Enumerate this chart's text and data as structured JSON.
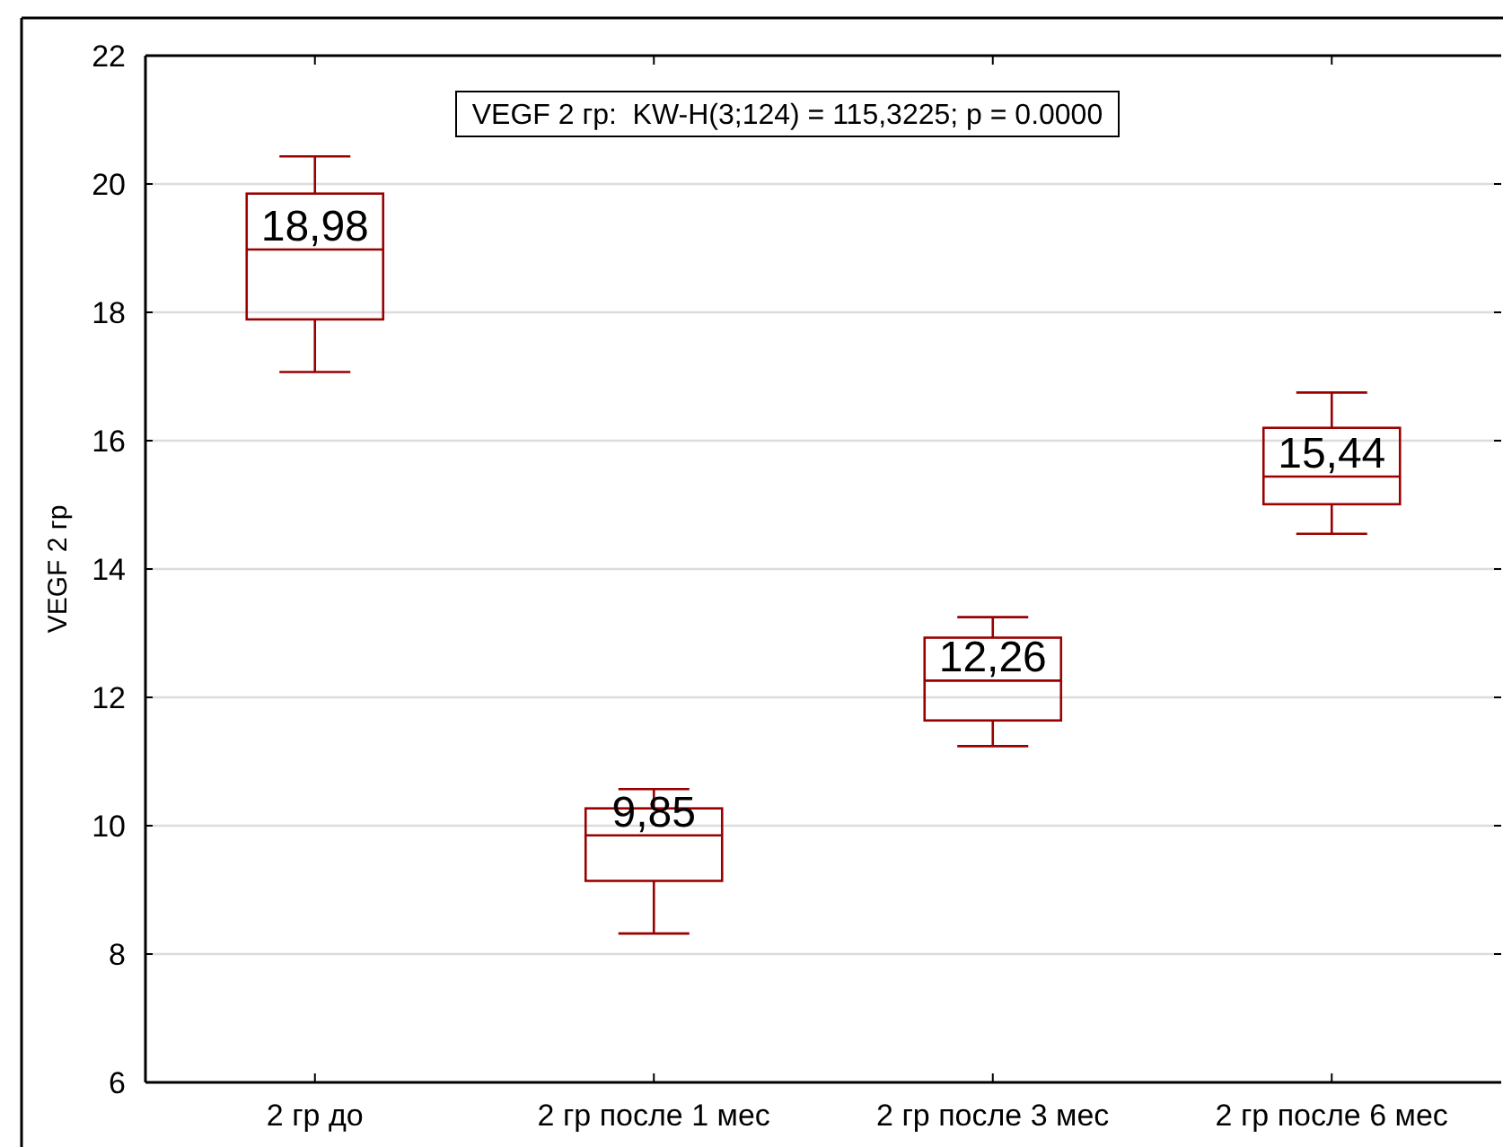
{
  "chart_data": {
    "type": "box",
    "ylabel": "VEGF 2 гр",
    "categories": [
      "2 гр до",
      "2 гр после 1 мес",
      "2 гр после 3 мес",
      "2 гр после 6 мес"
    ],
    "series": [
      {
        "color": "#990000",
        "boxes": [
          {
            "low": 17.07,
            "q1": 17.89,
            "median": 18.98,
            "q3": 19.85,
            "high": 20.43
          },
          {
            "low": 8.32,
            "q1": 9.14,
            "median": 9.85,
            "q3": 10.27,
            "high": 10.57
          },
          {
            "low": 11.24,
            "q1": 11.64,
            "median": 12.26,
            "q3": 12.93,
            "high": 13.25
          },
          {
            "low": 14.55,
            "q1": 15.01,
            "median": 15.44,
            "q3": 16.2,
            "high": 16.75
          }
        ],
        "value_labels": [
          "18,98",
          "9,85",
          "12,26",
          "15,44"
        ]
      }
    ],
    "ylim": [
      6,
      22
    ],
    "yticks": [
      6,
      8,
      10,
      12,
      14,
      16,
      18,
      20,
      22
    ],
    "grid": "y",
    "annotations": [
      "VEGF 2 гр:  KW-H(3;124) = 115,3225; p = 0.0000"
    ]
  }
}
